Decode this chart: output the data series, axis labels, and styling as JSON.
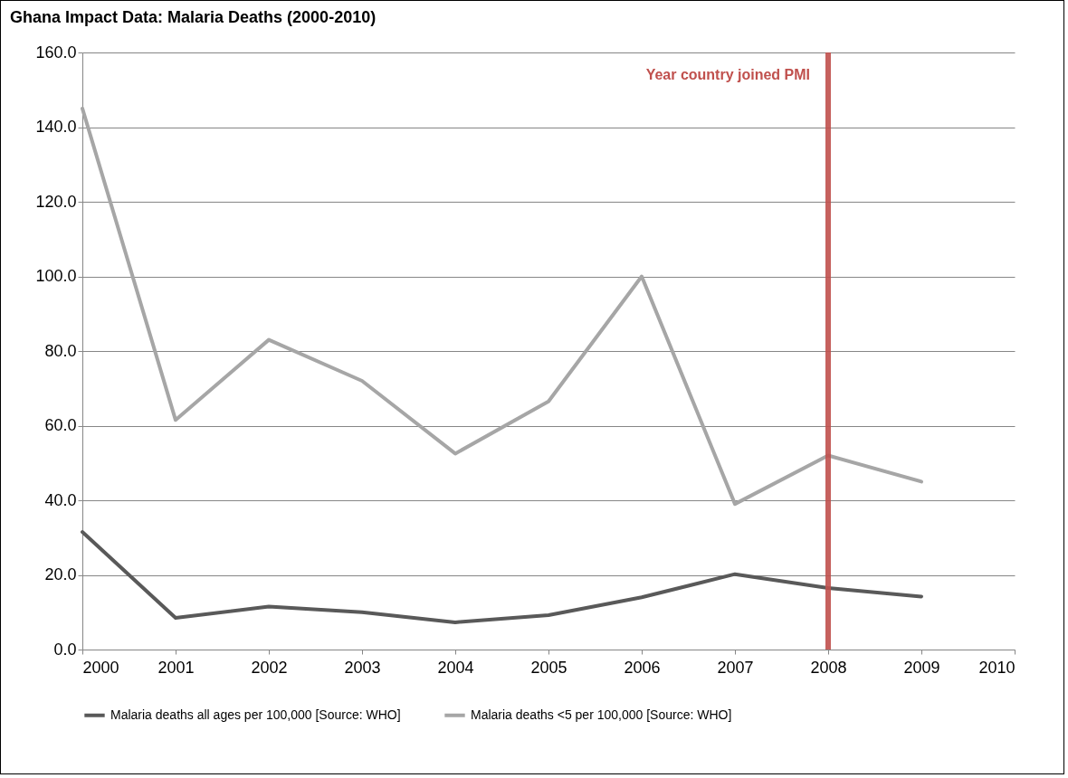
{
  "chart_data": {
    "type": "line",
    "title": "Ghana Impact Data: Malaria Deaths (2000-2010)",
    "x": [
      2000,
      2001,
      2002,
      2003,
      2004,
      2005,
      2006,
      2007,
      2008,
      2009
    ],
    "series": [
      {
        "name": "Malaria deaths all ages per 100,000 [Source: WHO]",
        "color": "#595959",
        "values": [
          31.5,
          8.5,
          11.5,
          10,
          7.3,
          9.2,
          14,
          20.2,
          16.5,
          14.2
        ]
      },
      {
        "name": "Malaria deaths <5 per 100,000 [Source: WHO]",
        "color": "#a6a6a6",
        "values": [
          145,
          61.5,
          83,
          72,
          52.5,
          66.5,
          100,
          39,
          52,
          45
        ]
      }
    ],
    "xlim": [
      2000,
      2010
    ],
    "xticks": [
      2000,
      2001,
      2002,
      2003,
      2004,
      2005,
      2006,
      2007,
      2008,
      2009,
      2010
    ],
    "ylim": [
      0,
      160
    ],
    "yticks": [
      {
        "value": 0,
        "label": "0.0"
      },
      {
        "value": 20,
        "label": "20.0"
      },
      {
        "value": 40,
        "label": "40.0"
      },
      {
        "value": 60,
        "label": "60.0"
      },
      {
        "value": 80,
        "label": "80.0"
      },
      {
        "value": 100,
        "label": "100.0"
      },
      {
        "value": 120,
        "label": "120.0"
      },
      {
        "value": 140,
        "label": "140.0"
      },
      {
        "value": 160,
        "label": "160.0"
      }
    ],
    "grid": "y",
    "legend": "bottom",
    "ref_lines": [
      {
        "axis": "x",
        "value": 2008,
        "label": "Year country joined PMI",
        "color": "#c0504d"
      }
    ]
  }
}
